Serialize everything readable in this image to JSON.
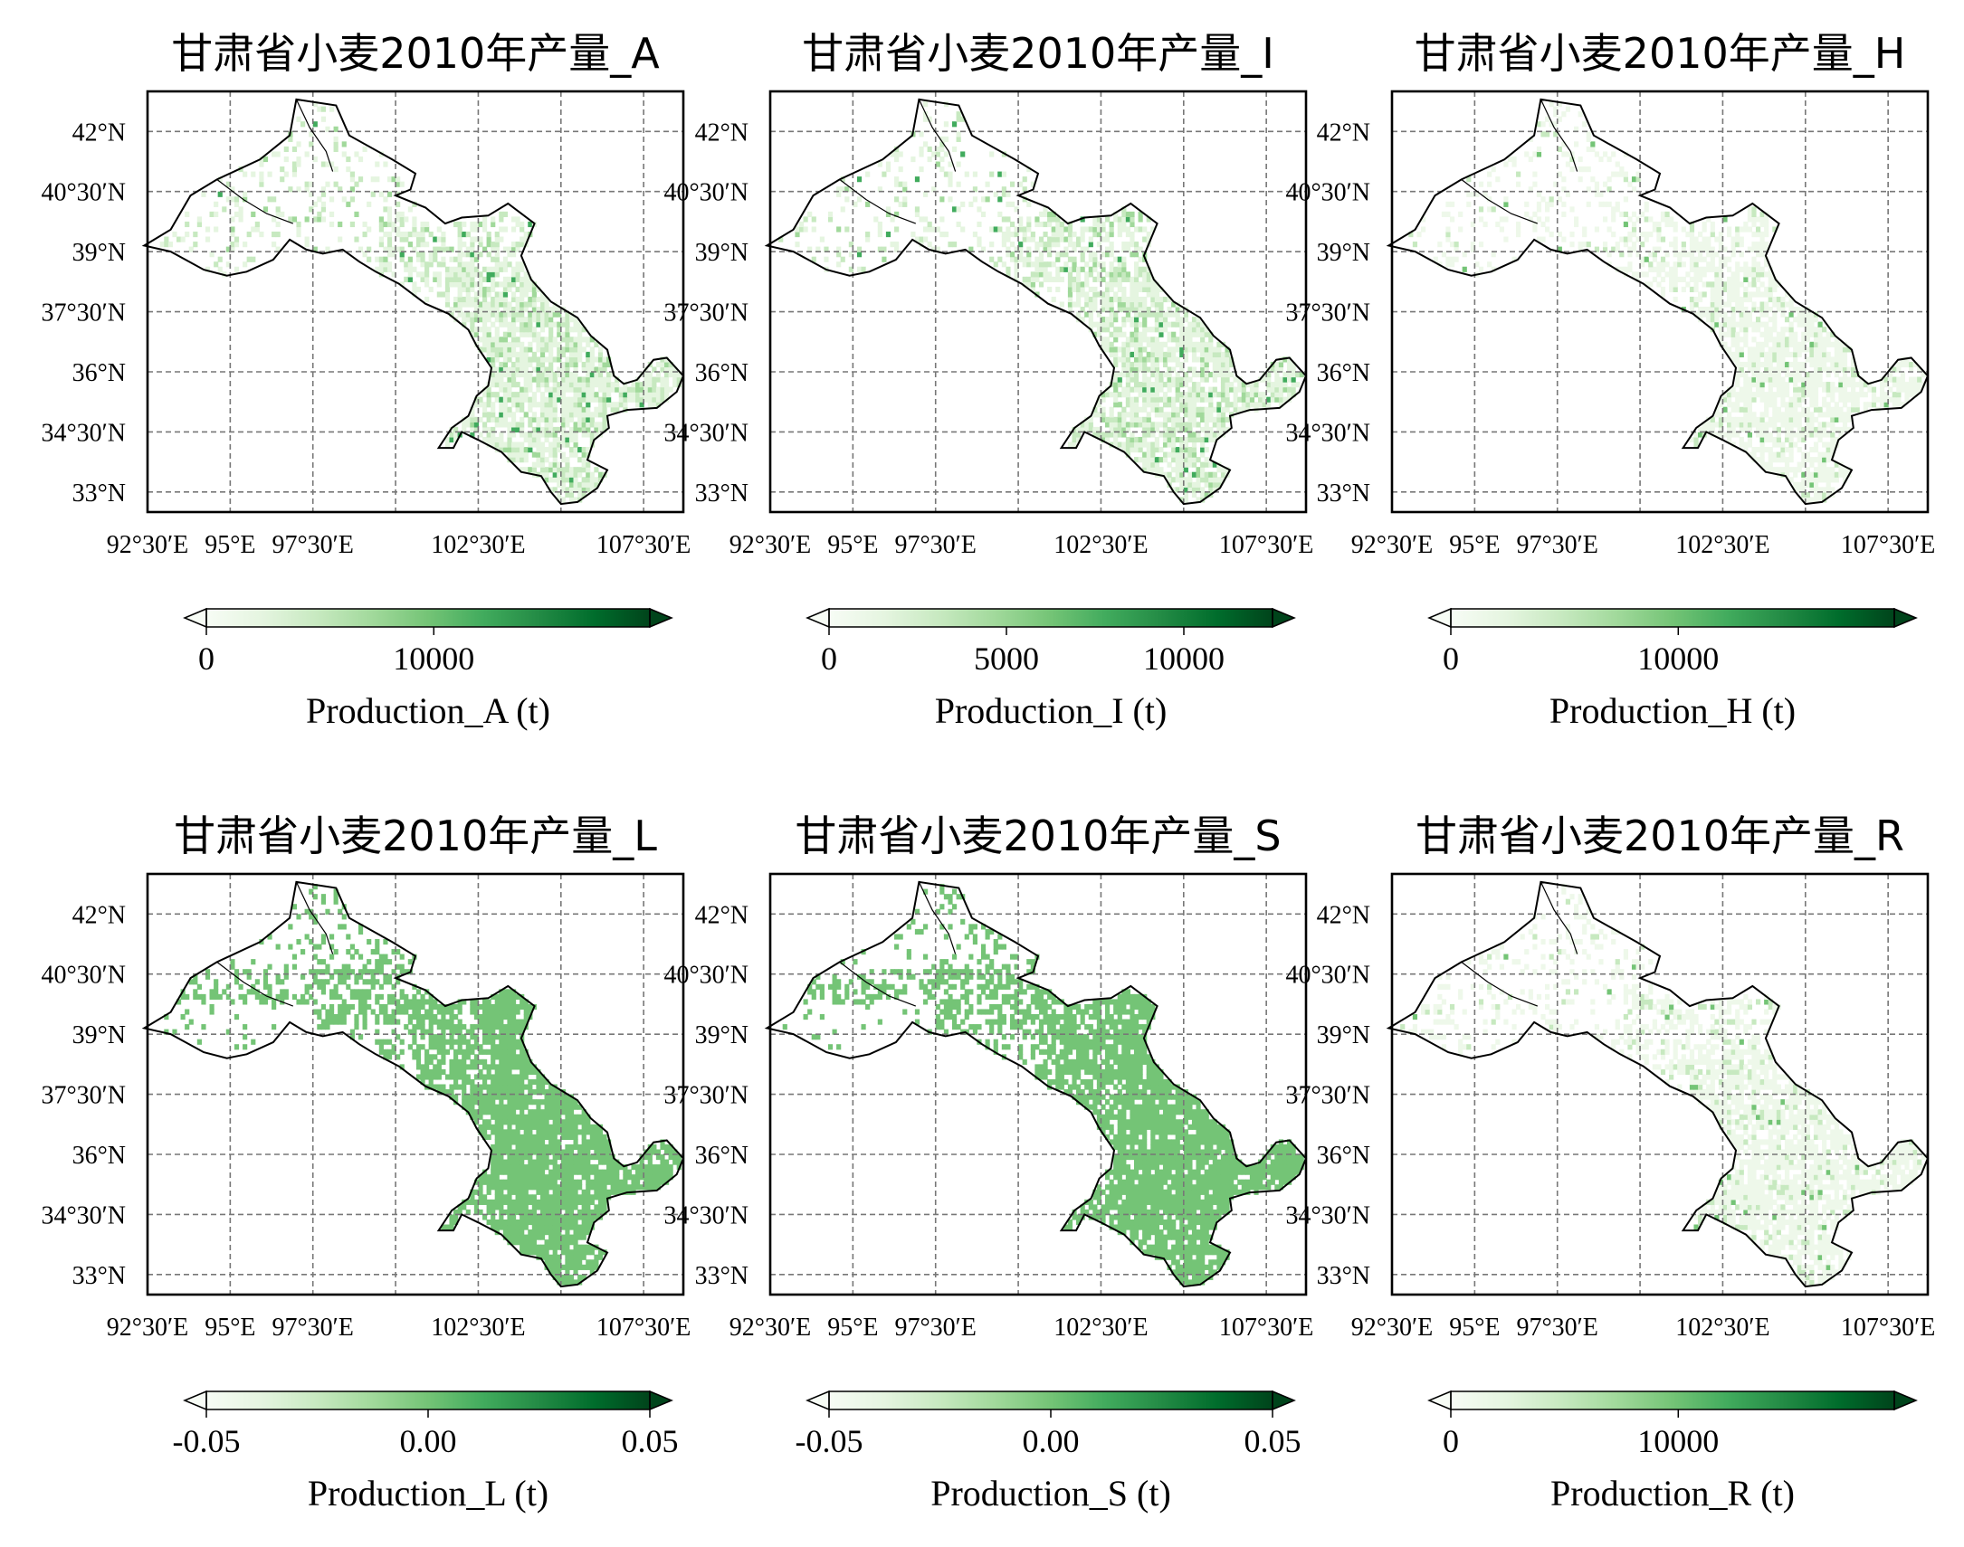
{
  "chart_data": {
    "type": "choropleth-map-grid",
    "lat_ticks": [
      "42°N",
      "40°30′N",
      "39°N",
      "37°30′N",
      "36°N",
      "34°30′N",
      "33°N"
    ],
    "lon_ticks": [
      "92°30′E",
      "95°E",
      "97°30′E",
      "102°30′E",
      "107°30′E"
    ],
    "grid": true,
    "colormap": "Greens",
    "colormap_stops": [
      "#f7fcf5",
      "#e5f5e0",
      "#c7e9c0",
      "#a1d99b",
      "#74c476",
      "#41ab5d",
      "#238b45",
      "#006d2c",
      "#00441b"
    ],
    "panels": [
      {
        "title": "甘肃省小麦2010年产量_A",
        "cbar_label": "Production_A (t)",
        "cbar_ticks": [
          "0",
          "10000"
        ],
        "cbar_tick_values": [
          0,
          10000
        ],
        "cbar_range": [
          0,
          19500
        ],
        "fill": "sparse",
        "extend": "both"
      },
      {
        "title": "甘肃省小麦2010年产量_I",
        "cbar_label": "Production_I (t)",
        "cbar_ticks": [
          "0",
          "5000",
          "10000"
        ],
        "cbar_tick_values": [
          0,
          5000,
          10000
        ],
        "cbar_range": [
          0,
          12500
        ],
        "fill": "sparse",
        "extend": "both"
      },
      {
        "title": "甘肃省小麦2010年产量_H",
        "cbar_label": "Production_H (t)",
        "cbar_ticks": [
          "0",
          "10000"
        ],
        "cbar_tick_values": [
          0,
          10000
        ],
        "cbar_range": [
          0,
          19500
        ],
        "fill": "faint",
        "extend": "both"
      },
      {
        "title": "甘肃省小麦2010年产量_L",
        "cbar_label": "Production_L (t)",
        "cbar_ticks": [
          "-0.05",
          "0.00",
          "0.05"
        ],
        "cbar_tick_values": [
          -0.05,
          0.0,
          0.05
        ],
        "cbar_range": [
          -0.05,
          0.05
        ],
        "fill": "solid",
        "extend": "both"
      },
      {
        "title": "甘肃省小麦2010年产量_S",
        "cbar_label": "Production_S (t)",
        "cbar_ticks": [
          "-0.05",
          "0.00",
          "0.05"
        ],
        "cbar_tick_values": [
          -0.05,
          0.0,
          0.05
        ],
        "cbar_range": [
          -0.05,
          0.05
        ],
        "fill": "solid",
        "extend": "both"
      },
      {
        "title": "甘肃省小麦2010年产量_R",
        "cbar_label": "Production_R (t)",
        "cbar_ticks": [
          "0",
          "10000"
        ],
        "cbar_tick_values": [
          0,
          10000
        ],
        "cbar_range": [
          0,
          19500
        ],
        "fill": "faint",
        "extend": "both"
      }
    ]
  }
}
